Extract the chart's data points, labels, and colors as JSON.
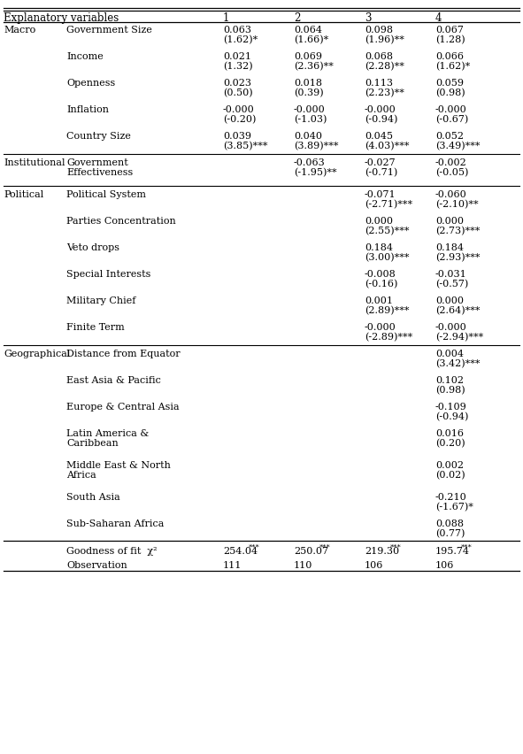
{
  "columns": [
    "Explanatory variables",
    "1",
    "2",
    "3",
    "4"
  ],
  "rows": [
    {
      "category": "Macro",
      "subcategory": "Government Size",
      "col1": "0.063",
      "col2": "0.064",
      "col3": "0.098",
      "col4": "0.067",
      "stat1": "(1.62)*",
      "stat2": "(1.66)*",
      "stat3": "(1.96)**",
      "stat4": "(1.28)"
    },
    {
      "category": "",
      "subcategory": "Income",
      "col1": "0.021",
      "col2": "0.069",
      "col3": "0.068",
      "col4": "0.066",
      "stat1": "(1.32)",
      "stat2": "(2.36)**",
      "stat3": "(2.28)**",
      "stat4": "(1.62)*"
    },
    {
      "category": "",
      "subcategory": "Openness",
      "col1": "0.023",
      "col2": "0.018",
      "col3": "0.113",
      "col4": "0.059",
      "stat1": "(0.50)",
      "stat2": "(0.39)",
      "stat3": "(2.23)**",
      "stat4": "(0.98)"
    },
    {
      "category": "",
      "subcategory": "Inflation",
      "col1": "-0.000",
      "col2": "-0.000",
      "col3": "-0.000",
      "col4": "-0.000",
      "stat1": "(-0.20)",
      "stat2": "(-1.03)",
      "stat3": "(-0.94)",
      "stat4": "(-0.67)"
    },
    {
      "category": "",
      "subcategory": "Country Size",
      "col1": "0.039",
      "col2": "0.040",
      "col3": "0.045",
      "col4": "0.052",
      "stat1": "(3.85)***",
      "stat2": "(3.89)***",
      "stat3": "(4.03)***",
      "stat4": "(3.49)***"
    },
    {
      "category": "Institutional",
      "subcategory": "Government\nEffectiveness",
      "col1": "",
      "col2": "-0.063",
      "col3": "-0.027",
      "col4": "-0.002",
      "stat1": "",
      "stat2": "(-1.95)**",
      "stat3": "(-0.71)",
      "stat4": "(-0.05)"
    },
    {
      "category": "Political",
      "subcategory": "Political System",
      "col1": "",
      "col2": "",
      "col3": "-0.071",
      "col4": "-0.060",
      "stat1": "",
      "stat2": "",
      "stat3": "(-2.71)***",
      "stat4": "(-2.10)**"
    },
    {
      "category": "",
      "subcategory": "Parties Concentration",
      "col1": "",
      "col2": "",
      "col3": "0.000",
      "col4": "0.000",
      "stat1": "",
      "stat2": "",
      "stat3": "(2.55)***",
      "stat4": "(2.73)***"
    },
    {
      "category": "",
      "subcategory": "Veto drops",
      "col1": "",
      "col2": "",
      "col3": "0.184",
      "col4": "0.184",
      "stat1": "",
      "stat2": "",
      "stat3": "(3.00)***",
      "stat4": "(2.93)***"
    },
    {
      "category": "",
      "subcategory": "Special Interests",
      "col1": "",
      "col2": "",
      "col3": "-0.008",
      "col4": "-0.031",
      "stat1": "",
      "stat2": "",
      "stat3": "(-0.16)",
      "stat4": "(-0.57)"
    },
    {
      "category": "",
      "subcategory": "Military Chief",
      "col1": "",
      "col2": "",
      "col3": "0.001",
      "col4": "0.000",
      "stat1": "",
      "stat2": "",
      "stat3": "(2.89)***",
      "stat4": "(2.64)***"
    },
    {
      "category": "",
      "subcategory": "Finite Term",
      "col1": "",
      "col2": "",
      "col3": "-0.000",
      "col4": "-0.000",
      "stat1": "",
      "stat2": "",
      "stat3": "(-2.89)***",
      "stat4": "(-2.94)***"
    },
    {
      "category": "Geographical",
      "subcategory": "Distance from Equator",
      "col1": "",
      "col2": "",
      "col3": "",
      "col4": "0.004",
      "stat1": "",
      "stat2": "",
      "stat3": "",
      "stat4": "(3.42)***"
    },
    {
      "category": "",
      "subcategory": "East Asia & Pacific",
      "col1": "",
      "col2": "",
      "col3": "",
      "col4": "0.102",
      "stat1": "",
      "stat2": "",
      "stat3": "",
      "stat4": "(0.98)"
    },
    {
      "category": "",
      "subcategory": "Europe & Central Asia",
      "col1": "",
      "col2": "",
      "col3": "",
      "col4": "-0.109",
      "stat1": "",
      "stat2": "",
      "stat3": "",
      "stat4": "(-0.94)"
    },
    {
      "category": "",
      "subcategory": "Latin America &\nCaribbean",
      "col1": "",
      "col2": "",
      "col3": "",
      "col4": "0.016",
      "stat1": "",
      "stat2": "",
      "stat3": "",
      "stat4": "(0.20)"
    },
    {
      "category": "",
      "subcategory": "Middle East & North\nAfrica",
      "col1": "",
      "col2": "",
      "col3": "",
      "col4": "0.002",
      "stat1": "",
      "stat2": "",
      "stat3": "",
      "stat4": "(0.02)"
    },
    {
      "category": "",
      "subcategory": "South Asia",
      "col1": "",
      "col2": "",
      "col3": "",
      "col4": "-0.210",
      "stat1": "",
      "stat2": "",
      "stat3": "",
      "stat4": "(-1.67)*"
    },
    {
      "category": "",
      "subcategory": "Sub-Saharan Africa",
      "col1": "",
      "col2": "",
      "col3": "",
      "col4": "0.088",
      "stat1": "",
      "stat2": "",
      "stat3": "",
      "stat4": "(0.77)"
    }
  ],
  "footer": [
    {
      "label": "Goodness of fit  χ²",
      "col1": "254.04***",
      "col2": "250.07***",
      "col3": "219.30***",
      "col4": "195.74***",
      "superscript": true
    },
    {
      "label": "Observation",
      "col1": "111",
      "col2": "110",
      "col3": "106",
      "col4": "106",
      "superscript": false
    }
  ],
  "section_lines_before_idx": [
    5,
    6,
    12
  ],
  "bg_color": "#ffffff",
  "text_color": "#000000",
  "font_size": 8.0,
  "header_font_size": 8.5
}
